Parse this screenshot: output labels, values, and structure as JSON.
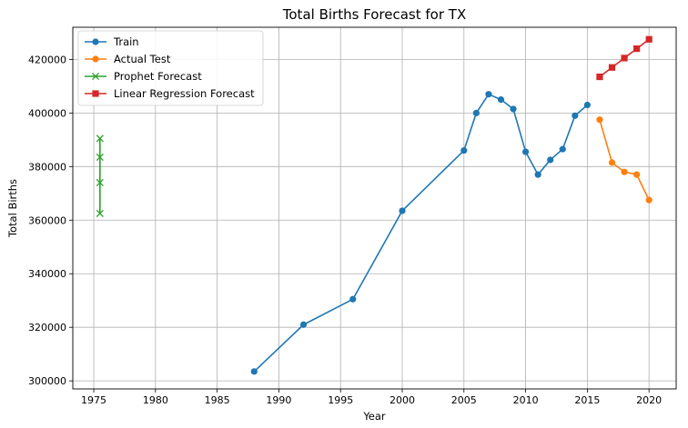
{
  "chart_data": {
    "type": "line",
    "title": "Total Births Forecast for TX",
    "xlabel": "Year",
    "ylabel": "Total Births",
    "xlim": [
      1973.3,
      2022.2
    ],
    "ylim": [
      297000,
      432000
    ],
    "xticks": [
      1975,
      1980,
      1985,
      1990,
      1995,
      2000,
      2005,
      2010,
      2015,
      2020
    ],
    "yticks": [
      300000,
      320000,
      340000,
      360000,
      380000,
      400000,
      420000
    ],
    "grid": true,
    "legend_position": "top-left",
    "series": [
      {
        "name": "Train",
        "color": "#1f77b4",
        "marker": "circle",
        "x": [
          1988,
          1992,
          1996,
          2000,
          2005,
          2006,
          2007,
          2008,
          2009,
          2010,
          2011,
          2012,
          2013,
          2014,
          2015
        ],
        "y": [
          303500,
          321000,
          330500,
          363500,
          386000,
          400000,
          407000,
          405000,
          401500,
          385500,
          377000,
          382500,
          386500,
          399000,
          403000
        ]
      },
      {
        "name": "Actual Test",
        "color": "#ff7f0e",
        "marker": "circle",
        "x": [
          2016,
          2017,
          2018,
          2019,
          2020
        ],
        "y": [
          397500,
          381500,
          378000,
          377000,
          367500
        ]
      },
      {
        "name": "Prophet Forecast",
        "color": "#2ca02c",
        "marker": "x",
        "x": [
          1975.5,
          1975.5,
          1975.5,
          1975.5
        ],
        "y": [
          362500,
          374000,
          383500,
          390500
        ]
      },
      {
        "name": "Linear Regression Forecast",
        "color": "#d62728",
        "marker": "square",
        "x": [
          2016,
          2017,
          2018,
          2019,
          2020
        ],
        "y": [
          413500,
          417000,
          420500,
          424000,
          427500
        ]
      }
    ]
  }
}
